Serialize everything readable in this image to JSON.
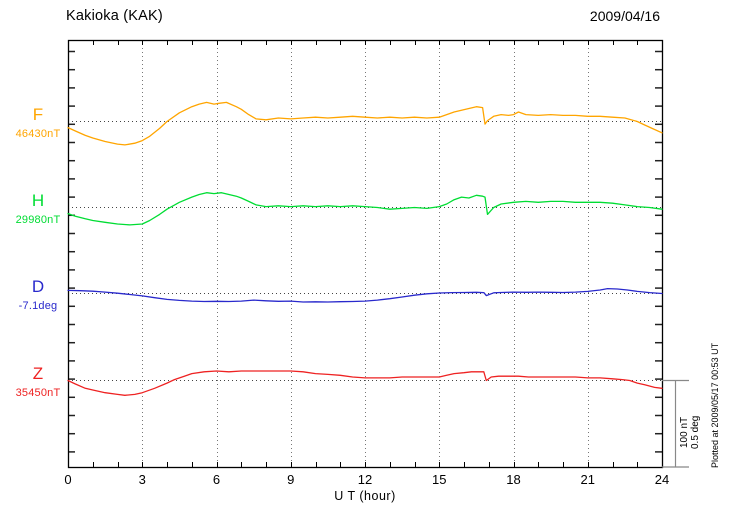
{
  "chart_data": {
    "type": "line",
    "title": "Kakioka (KAK)",
    "date_label": "2009/04/16",
    "xlabel": "U T (hour)",
    "x_range": [
      0,
      24
    ],
    "x_tick_hours": [
      0,
      3,
      6,
      9,
      12,
      15,
      18,
      21,
      24
    ],
    "x_tick_labels": [
      "0",
      "3",
      "6",
      "9",
      "12",
      "15",
      "18",
      "21",
      "24"
    ],
    "grid": "dotted vertical line every 3 hours; dotted horizontal baseline per channel",
    "legend_position": "left of each trace",
    "scale_bar": {
      "lines": [
        "100 nT",
        "0.5 deg"
      ],
      "nT_per_bar": 100,
      "deg_per_bar": 0.5
    },
    "plotted_at": "Plotted at 2009/05/17 00:53 UT",
    "series": [
      {
        "name": "F",
        "unit": "nT",
        "base_label": "46430nT",
        "base_value": 46430,
        "color": "#FFA500",
        "x": [
          0,
          0.3,
          0.7,
          1,
          1.5,
          2,
          2.3,
          2.7,
          3,
          3.3,
          3.7,
          4,
          4.5,
          5,
          5.3,
          5.6,
          5.9,
          6.1,
          6.4,
          6.8,
          7,
          7.3,
          7.6,
          8,
          8.5,
          9,
          9.5,
          10,
          10.5,
          11,
          11.5,
          12,
          12.5,
          13,
          13.5,
          14,
          14.5,
          15,
          15.3,
          15.6,
          15.9,
          16.2,
          16.5,
          16.75,
          16.85,
          16.95,
          17.2,
          17.5,
          17.8,
          18,
          18.2,
          18.5,
          19,
          19.5,
          20,
          20.5,
          21,
          21.5,
          22,
          22.5,
          23,
          23.3,
          23.6,
          24
        ],
        "y_offset": [
          -7,
          -11,
          -16,
          -19,
          -23,
          -26,
          -27,
          -25,
          -22,
          -17,
          -8,
          0,
          10,
          17,
          20,
          22,
          20,
          21,
          22,
          17,
          14,
          8,
          3,
          2,
          4,
          3,
          4,
          5,
          4,
          5,
          6,
          5,
          4,
          5,
          4,
          5,
          4,
          5,
          8,
          11,
          13,
          15,
          17,
          16,
          -3,
          1,
          6,
          8,
          7,
          8,
          11,
          8,
          7,
          8,
          7,
          7,
          6,
          6,
          5,
          4,
          0,
          -4,
          -8,
          -13
        ]
      },
      {
        "name": "H",
        "unit": "nT",
        "base_label": "29980nT",
        "base_value": 29980,
        "color": "#00DD33",
        "x": [
          0,
          0.3,
          0.7,
          1,
          1.5,
          2,
          2.5,
          3,
          3.3,
          3.7,
          4,
          4.5,
          5,
          5.3,
          5.6,
          5.9,
          6.2,
          6.5,
          6.8,
          7,
          7.3,
          7.6,
          8,
          8.5,
          9,
          9.5,
          10,
          10.5,
          11,
          11.5,
          12,
          12.5,
          13,
          13.5,
          14,
          14.5,
          15,
          15.3,
          15.6,
          15.9,
          16.2,
          16.5,
          16.75,
          16.85,
          16.95,
          17.2,
          17.5,
          18,
          18.5,
          19,
          19.5,
          20,
          20.5,
          21,
          21.5,
          22,
          22.5,
          23,
          23.5,
          24
        ],
        "y_offset": [
          -7,
          -10,
          -13,
          -15,
          -17,
          -19,
          -20,
          -19,
          -15,
          -8,
          -2,
          6,
          12,
          15,
          17,
          16,
          17,
          15,
          13,
          11,
          7,
          3,
          1,
          2,
          1,
          2,
          1,
          2,
          1,
          2,
          1,
          0,
          -2,
          -1,
          0,
          -1,
          1,
          4,
          9,
          12,
          11,
          14,
          13,
          12,
          -8,
          0,
          4,
          6,
          7,
          6,
          7,
          7,
          6,
          6,
          6,
          5,
          3,
          1,
          0,
          -2
        ]
      },
      {
        "name": "D",
        "unit": "deg",
        "base_label": "-7.1deg",
        "base_value": -7.1,
        "color": "#2929CC",
        "x": [
          0,
          0.5,
          1,
          1.5,
          2,
          2.5,
          3,
          3.5,
          4,
          4.5,
          5,
          5.5,
          6,
          6.5,
          7,
          7.5,
          8,
          8.5,
          9,
          9.5,
          10,
          10.5,
          11,
          11.5,
          12,
          12.5,
          13,
          13.5,
          14,
          14.5,
          15,
          15.5,
          16,
          16.5,
          16.8,
          16.9,
          17.2,
          17.5,
          18,
          18.5,
          19,
          19.5,
          20,
          20.5,
          21,
          21.5,
          21.8,
          22.2,
          22.6,
          23,
          23.5,
          24
        ],
        "y_offset": [
          0.018,
          0.016,
          0.013,
          0.008,
          0.002,
          -0.006,
          -0.014,
          -0.024,
          -0.034,
          -0.04,
          -0.044,
          -0.046,
          -0.045,
          -0.046,
          -0.044,
          -0.038,
          -0.042,
          -0.045,
          -0.044,
          -0.049,
          -0.048,
          -0.049,
          -0.047,
          -0.046,
          -0.044,
          -0.038,
          -0.03,
          -0.02,
          -0.01,
          -0.002,
          0.003,
          0.005,
          0.006,
          0.007,
          0.005,
          -0.012,
          0.004,
          0.006,
          0.008,
          0.007,
          0.008,
          0.007,
          0.006,
          0.008,
          0.012,
          0.02,
          0.028,
          0.026,
          0.02,
          0.012,
          0.005,
          0
        ]
      },
      {
        "name": "Z",
        "unit": "nT",
        "base_label": "35450nT",
        "base_value": 35450,
        "color": "#EE2222",
        "x": [
          0,
          0.3,
          0.7,
          1,
          1.5,
          2,
          2.3,
          2.7,
          3,
          3.5,
          4,
          4.3,
          4.7,
          5,
          5.5,
          6,
          6.5,
          7,
          7.5,
          8,
          8.5,
          9,
          9.5,
          10,
          10.5,
          11,
          11.5,
          12,
          12.5,
          13,
          13.5,
          14,
          14.5,
          15,
          15.3,
          15.6,
          16,
          16.3,
          16.6,
          16.8,
          16.9,
          17.1,
          17.4,
          17.8,
          18.2,
          18.6,
          19,
          19.5,
          20,
          20.5,
          21,
          21.5,
          22,
          22.4,
          22.7,
          23,
          23.3,
          23.7,
          24
        ],
        "y_offset": [
          0,
          -4,
          -9,
          -11,
          -14,
          -16,
          -17,
          -16,
          -14,
          -9,
          -3,
          1,
          5,
          8,
          10,
          11,
          10,
          11,
          11,
          11,
          11,
          11,
          10,
          8,
          7,
          6,
          4,
          3,
          3,
          3,
          4,
          4,
          4,
          4,
          6,
          8,
          9,
          10,
          10,
          10,
          0,
          4,
          5,
          5,
          5,
          4,
          4,
          4,
          4,
          4,
          3,
          3,
          2,
          1,
          0,
          -3,
          -5,
          -8,
          -9
        ]
      }
    ]
  }
}
